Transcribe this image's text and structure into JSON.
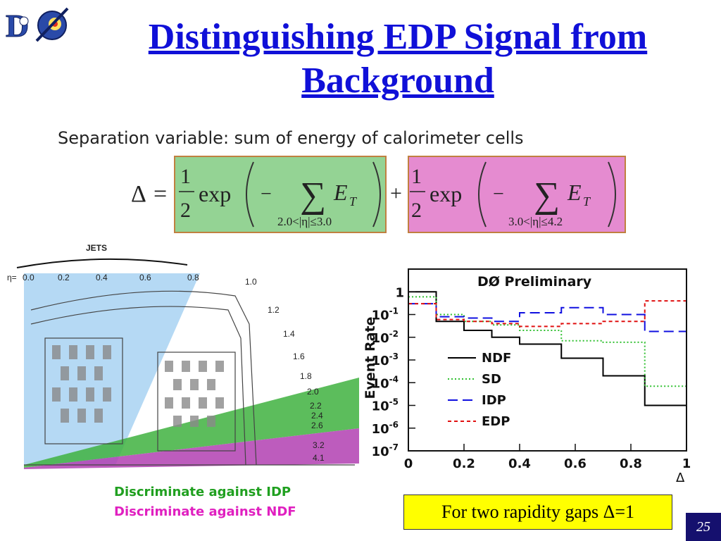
{
  "slide": {
    "title_line1": "Distinguishing EDP Signal from",
    "title_line2": "Background",
    "subtitle": "Separation variable:  sum of energy of calorimeter cells",
    "note": "For two rapidity gaps Δ=1",
    "page_number": "25",
    "logo_text": "DØ"
  },
  "formula": {
    "delta": "Δ",
    "equals": "=",
    "plus": "+",
    "numerator": "1",
    "denominator": "2",
    "exp": "exp",
    "minus": "−",
    "sum": "∑",
    "et_e": "E",
    "et_t": "T",
    "range1": "2.0<|η|≤3.0",
    "range2": "3.0<|η|≤4.2",
    "colors": {
      "green_box": "#94d394",
      "pink_box": "#e58bd0",
      "box_border": "#c08040"
    }
  },
  "detector": {
    "jets_label": "JETS",
    "eta_label": "η=",
    "eta_top": [
      "0.0",
      "0.2",
      "0.4",
      "0.6",
      "0.8"
    ],
    "eta_side": [
      "1.0",
      "1.2",
      "1.4",
      "1.6",
      "1.8",
      "2.0",
      "2.2",
      "2.4",
      "2.6",
      "3.2",
      "4.1"
    ],
    "legend_idp": "Discriminate against IDP",
    "legend_ndf": "Discriminate against NDF",
    "colors": {
      "jets": "#a8d2f2",
      "green": "#3fb23f",
      "magenta": "#b23fb2",
      "legend_idp": "#20a020",
      "legend_ndf": "#e020c0"
    }
  },
  "chart_data": {
    "type": "line",
    "style": "step",
    "title": "DØ Preliminary",
    "xlabel": "Δ",
    "ylabel": "Event Rate",
    "log_y": true,
    "xlim": [
      0,
      1
    ],
    "ylim": [
      1e-07,
      10
    ],
    "x_ticks": [
      "0",
      "0.2",
      "0.4",
      "0.6",
      "0.8",
      "1"
    ],
    "y_ticks": [
      {
        "base": "1",
        "exp": ""
      },
      {
        "base": "10",
        "exp": "-1"
      },
      {
        "base": "10",
        "exp": "-2"
      },
      {
        "base": "10",
        "exp": "-3"
      },
      {
        "base": "10",
        "exp": "-4"
      },
      {
        "base": "10",
        "exp": "-5"
      },
      {
        "base": "10",
        "exp": "-6"
      },
      {
        "base": "10",
        "exp": "-7"
      }
    ],
    "bin_edges": [
      0,
      0.1,
      0.2,
      0.3,
      0.4,
      0.55,
      0.7,
      0.85,
      1.0
    ],
    "series": [
      {
        "name": "NDF",
        "color": "#000000",
        "dash": "solid",
        "values": [
          1.0,
          0.05,
          0.02,
          0.01,
          0.005,
          0.0012,
          0.0002,
          1e-05
        ]
      },
      {
        "name": "SD",
        "color": "#30c030",
        "dash": "dotted",
        "values": [
          0.6,
          0.1,
          0.05,
          0.035,
          0.02,
          0.007,
          0.006,
          7e-05
        ]
      },
      {
        "name": "IDP",
        "color": "#1010e0",
        "dash": "dashed",
        "values": [
          0.3,
          0.08,
          0.07,
          0.05,
          0.12,
          0.2,
          0.1,
          0.018
        ]
      },
      {
        "name": "EDP",
        "color": "#e01010",
        "dash": "dotted-red",
        "values": [
          0.3,
          0.06,
          0.05,
          0.04,
          0.03,
          0.04,
          0.05,
          0.4
        ]
      }
    ]
  }
}
